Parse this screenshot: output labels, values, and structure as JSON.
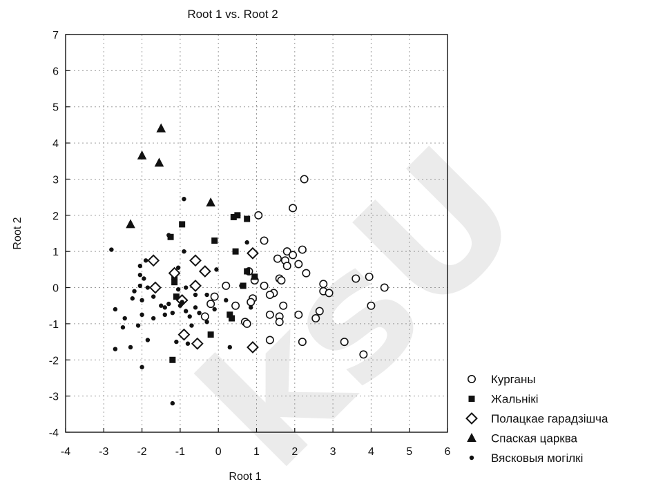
{
  "chart_data": {
    "type": "scatter",
    "title": "Root 1 vs. Root 2",
    "xlabel": "Root 1",
    "ylabel": "Root 2",
    "xlim": [
      -4,
      6
    ],
    "ylim": [
      -4,
      7
    ],
    "xticks": [
      -4,
      -3,
      -2,
      -1,
      0,
      1,
      2,
      3,
      4,
      5,
      6
    ],
    "yticks": [
      -4,
      -3,
      -2,
      -1,
      0,
      1,
      2,
      3,
      4,
      5,
      6,
      7
    ],
    "grid": true,
    "legend_position": "bottom-right",
    "series": [
      {
        "name": "Курганы",
        "marker": "open-circle",
        "points": [
          [
            2.25,
            3.0
          ],
          [
            1.95,
            2.2
          ],
          [
            1.05,
            2.0
          ],
          [
            1.2,
            1.3
          ],
          [
            2.2,
            1.05
          ],
          [
            1.8,
            1.0
          ],
          [
            1.95,
            0.9
          ],
          [
            1.55,
            0.8
          ],
          [
            1.75,
            0.75
          ],
          [
            2.1,
            0.65
          ],
          [
            1.8,
            0.6
          ],
          [
            2.3,
            0.4
          ],
          [
            0.8,
            0.45
          ],
          [
            1.6,
            0.25
          ],
          [
            1.65,
            0.2
          ],
          [
            0.95,
            0.2
          ],
          [
            0.2,
            0.05
          ],
          [
            1.2,
            0.05
          ],
          [
            1.45,
            -0.15
          ],
          [
            1.35,
            -0.2
          ],
          [
            0.9,
            -0.3
          ],
          [
            1.7,
            -0.5
          ],
          [
            0.45,
            -0.5
          ],
          [
            -0.2,
            -0.45
          ],
          [
            0.85,
            -0.4
          ],
          [
            2.65,
            -0.65
          ],
          [
            2.75,
            -0.1
          ],
          [
            2.9,
            -0.15
          ],
          [
            2.75,
            0.1
          ],
          [
            3.6,
            0.25
          ],
          [
            3.95,
            0.3
          ],
          [
            4.35,
            0.0
          ],
          [
            4.0,
            -0.5
          ],
          [
            2.1,
            -0.75
          ],
          [
            1.35,
            -0.75
          ],
          [
            1.6,
            -0.8
          ],
          [
            1.6,
            -0.95
          ],
          [
            2.55,
            -0.85
          ],
          [
            0.7,
            -0.95
          ],
          [
            0.75,
            -1.0
          ],
          [
            -0.35,
            -0.8
          ],
          [
            1.35,
            -1.45
          ],
          [
            2.2,
            -1.5
          ],
          [
            3.3,
            -1.5
          ],
          [
            3.8,
            -1.85
          ],
          [
            -0.1,
            -0.25
          ]
        ]
      },
      {
        "name": "Жальнікі",
        "marker": "filled-square",
        "points": [
          [
            0.5,
            2.0
          ],
          [
            0.4,
            1.95
          ],
          [
            0.75,
            1.9
          ],
          [
            -0.95,
            1.75
          ],
          [
            -1.25,
            1.4
          ],
          [
            -0.1,
            1.3
          ],
          [
            0.45,
            1.0
          ],
          [
            0.75,
            0.45
          ],
          [
            0.95,
            0.3
          ],
          [
            0.65,
            0.05
          ],
          [
            -1.15,
            0.3
          ],
          [
            -1.15,
            0.15
          ],
          [
            -1.1,
            -0.25
          ],
          [
            0.35,
            -0.85
          ],
          [
            0.3,
            -0.75
          ],
          [
            -0.2,
            -1.3
          ],
          [
            -1.2,
            -2.0
          ]
        ]
      },
      {
        "name": "Полацкае гарадзішча",
        "marker": "open-diamond",
        "points": [
          [
            -0.6,
            0.75
          ],
          [
            -1.7,
            0.75
          ],
          [
            -0.35,
            0.45
          ],
          [
            -1.15,
            0.4
          ],
          [
            -0.6,
            0.05
          ],
          [
            -1.65,
            0.0
          ],
          [
            -0.95,
            -0.35
          ],
          [
            0.9,
            0.95
          ],
          [
            -0.9,
            -1.3
          ],
          [
            -0.55,
            -1.55
          ],
          [
            0.9,
            -1.65
          ]
        ]
      },
      {
        "name": "Спаская царква",
        "marker": "filled-triangle",
        "points": [
          [
            -1.5,
            4.4
          ],
          [
            -2.0,
            3.65
          ],
          [
            -1.55,
            3.45
          ],
          [
            -0.2,
            2.35
          ],
          [
            -2.3,
            1.75
          ]
        ]
      },
      {
        "name": "Вясковыя могілкі",
        "marker": "small-dot",
        "points": [
          [
            -2.8,
            1.05
          ],
          [
            -0.9,
            2.45
          ],
          [
            -2.05,
            0.6
          ],
          [
            -1.9,
            0.75
          ],
          [
            -1.3,
            1.45
          ],
          [
            -0.9,
            1.0
          ],
          [
            -1.05,
            0.55
          ],
          [
            -2.05,
            0.35
          ],
          [
            -1.95,
            0.25
          ],
          [
            -2.05,
            0.05
          ],
          [
            -1.85,
            0.0
          ],
          [
            -2.2,
            -0.1
          ],
          [
            -2.25,
            -0.3
          ],
          [
            -2.0,
            -0.35
          ],
          [
            -1.7,
            -0.25
          ],
          [
            -1.5,
            -0.5
          ],
          [
            -1.4,
            -0.55
          ],
          [
            -1.3,
            -0.45
          ],
          [
            -1.2,
            -0.7
          ],
          [
            -1.0,
            -0.5
          ],
          [
            -0.85,
            -0.65
          ],
          [
            -0.75,
            -0.8
          ],
          [
            -0.6,
            -0.55
          ],
          [
            -0.5,
            -0.7
          ],
          [
            -0.3,
            -0.2
          ],
          [
            -0.05,
            0.5
          ],
          [
            0.75,
            1.25
          ],
          [
            0.6,
            0.05
          ],
          [
            0.85,
            -0.55
          ],
          [
            -0.1,
            -0.6
          ],
          [
            -0.6,
            -0.2
          ],
          [
            -0.85,
            0.0
          ],
          [
            -1.05,
            -0.05
          ],
          [
            -0.95,
            -0.4
          ],
          [
            -1.4,
            -0.75
          ],
          [
            -1.7,
            -0.85
          ],
          [
            -2.0,
            -0.75
          ],
          [
            -2.1,
            -1.05
          ],
          [
            -2.5,
            -1.1
          ],
          [
            -2.7,
            -0.6
          ],
          [
            -1.85,
            -1.45
          ],
          [
            -2.3,
            -1.65
          ],
          [
            -2.7,
            -1.7
          ],
          [
            -2.0,
            -2.2
          ],
          [
            -0.8,
            -1.55
          ],
          [
            -0.7,
            -1.05
          ],
          [
            -1.1,
            -1.5
          ],
          [
            -0.3,
            -0.95
          ],
          [
            0.2,
            -0.35
          ],
          [
            0.3,
            -1.65
          ],
          [
            -1.2,
            -3.2
          ],
          [
            -2.45,
            -0.85
          ]
        ]
      }
    ]
  },
  "watermark": "ksU"
}
